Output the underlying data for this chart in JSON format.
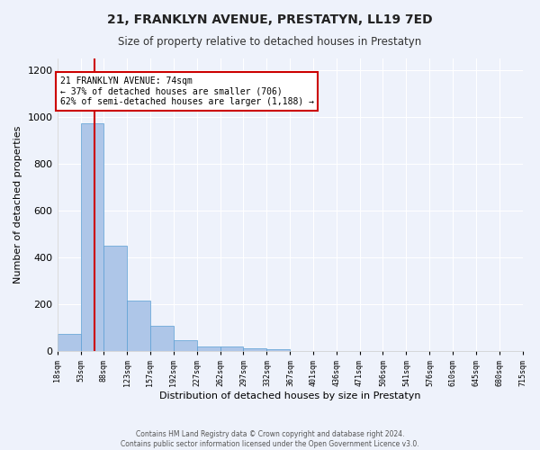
{
  "title": "21, FRANKLYN AVENUE, PRESTATYN, LL19 7ED",
  "subtitle": "Size of property relative to detached houses in Prestatyn",
  "xlabel": "Distribution of detached houses by size in Prestatyn",
  "ylabel": "Number of detached properties",
  "footer_line1": "Contains HM Land Registry data © Crown copyright and database right 2024.",
  "footer_line2": "Contains public sector information licensed under the Open Government Licence v3.0.",
  "annotation_line1": "21 FRANKLYN AVENUE: 74sqm",
  "annotation_line2": "← 37% of detached houses are smaller (706)",
  "annotation_line3": "62% of semi-detached houses are larger (1,188) →",
  "property_size": 74,
  "bin_edges": [
    18,
    53,
    88,
    123,
    157,
    192,
    227,
    262,
    297,
    332,
    367,
    401,
    436,
    471,
    506,
    541,
    576,
    610,
    645,
    680,
    715
  ],
  "bar_values": [
    75,
    975,
    450,
    215,
    110,
    47,
    22,
    20,
    13,
    8,
    0,
    0,
    0,
    0,
    0,
    0,
    0,
    0,
    0,
    0
  ],
  "bar_color": "#aec6e8",
  "bar_edge_color": "#5a9fd4",
  "red_line_color": "#cc0000",
  "annotation_box_edge_color": "#cc0000",
  "background_color": "#eef2fb",
  "grid_color": "#ffffff",
  "ylim": [
    0,
    1250
  ],
  "yticks": [
    0,
    200,
    400,
    600,
    800,
    1000,
    1200
  ]
}
